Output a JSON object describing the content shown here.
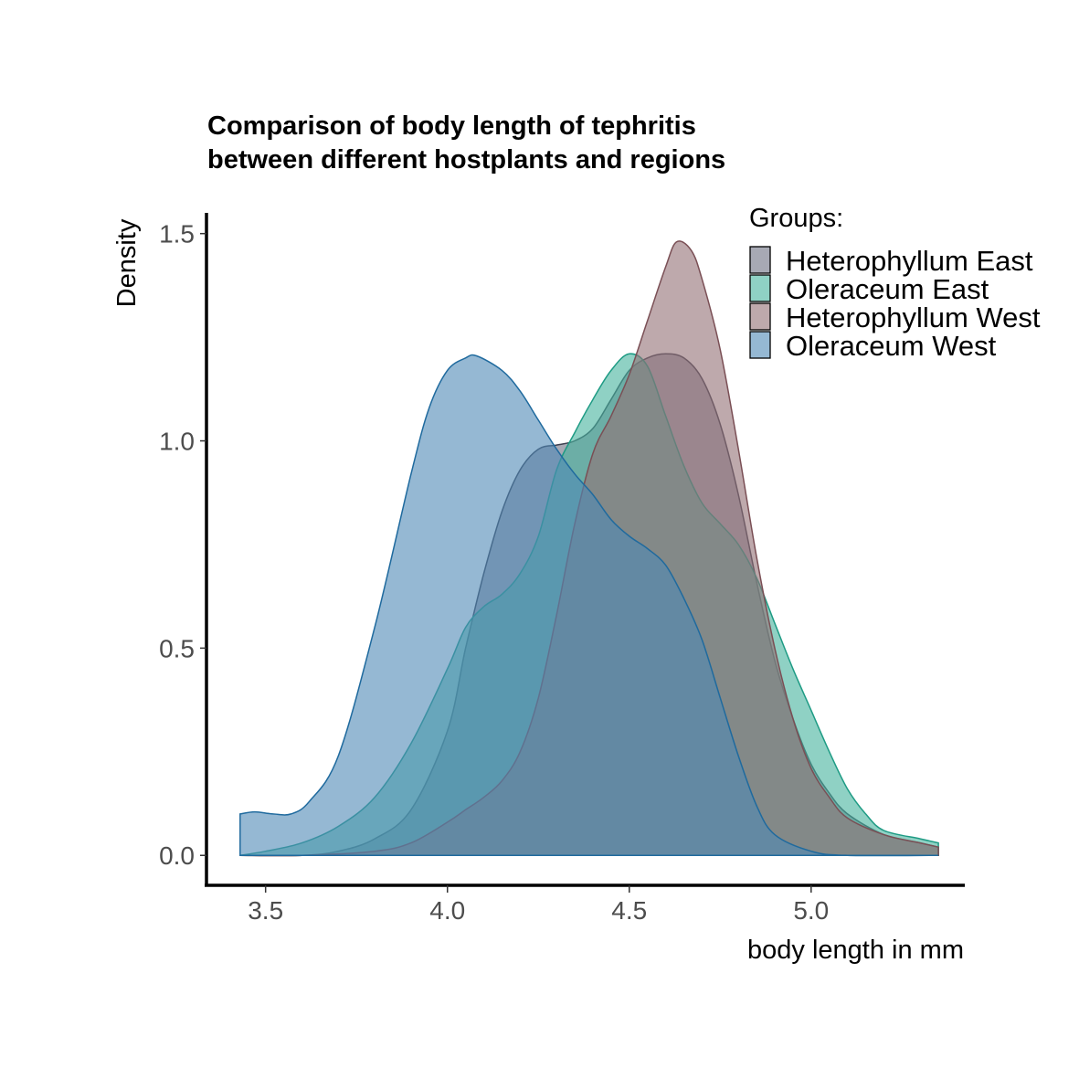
{
  "chart_data": {
    "type": "area",
    "title_lines": [
      "Comparison of body length of tephritis",
      "between different hostplants and regions"
    ],
    "xlabel": "body length in mm",
    "ylabel": "Density",
    "xlim": [
      3.34,
      5.42
    ],
    "ylim": [
      -0.07,
      1.55
    ],
    "x_ticks": [
      3.5,
      4.0,
      4.5,
      5.0
    ],
    "x_tick_labels": [
      "3.5",
      "4.0",
      "4.5",
      "5.0"
    ],
    "y_ticks": [
      0.0,
      0.5,
      1.0,
      1.5
    ],
    "y_tick_labels": [
      "0.0",
      "0.5",
      "1.0",
      "1.5"
    ],
    "grid": false,
    "legend": {
      "title": "Groups:",
      "placement": "top-right"
    },
    "series": [
      {
        "name": "Heterophyllum East",
        "fill": "#6c6f82",
        "stroke": "#3e4050",
        "opacity": 0.6,
        "points": [
          [
            3.43,
            0.0
          ],
          [
            3.6,
            0.0
          ],
          [
            3.7,
            0.01
          ],
          [
            3.8,
            0.04
          ],
          [
            3.9,
            0.11
          ],
          [
            4.0,
            0.3
          ],
          [
            4.05,
            0.5
          ],
          [
            4.1,
            0.68
          ],
          [
            4.15,
            0.83
          ],
          [
            4.2,
            0.93
          ],
          [
            4.25,
            0.98
          ],
          [
            4.3,
            0.99
          ],
          [
            4.35,
            1.0
          ],
          [
            4.4,
            1.03
          ],
          [
            4.45,
            1.1
          ],
          [
            4.5,
            1.17
          ],
          [
            4.55,
            1.2
          ],
          [
            4.6,
            1.21
          ],
          [
            4.65,
            1.2
          ],
          [
            4.7,
            1.15
          ],
          [
            4.75,
            1.04
          ],
          [
            4.8,
            0.87
          ],
          [
            4.85,
            0.66
          ],
          [
            4.9,
            0.47
          ],
          [
            4.95,
            0.33
          ],
          [
            5.0,
            0.22
          ],
          [
            5.05,
            0.15
          ],
          [
            5.1,
            0.1
          ],
          [
            5.2,
            0.05
          ],
          [
            5.3,
            0.03
          ],
          [
            5.35,
            0.02
          ]
        ]
      },
      {
        "name": "Oleraceum East",
        "fill": "#45b39d",
        "stroke": "#1e9b84",
        "opacity": 0.6,
        "points": [
          [
            3.43,
            0.0
          ],
          [
            3.5,
            0.01
          ],
          [
            3.6,
            0.03
          ],
          [
            3.7,
            0.07
          ],
          [
            3.8,
            0.14
          ],
          [
            3.9,
            0.27
          ],
          [
            4.0,
            0.45
          ],
          [
            4.05,
            0.55
          ],
          [
            4.1,
            0.6
          ],
          [
            4.15,
            0.63
          ],
          [
            4.2,
            0.68
          ],
          [
            4.25,
            0.77
          ],
          [
            4.3,
            0.93
          ],
          [
            4.35,
            1.02
          ],
          [
            4.4,
            1.1
          ],
          [
            4.45,
            1.17
          ],
          [
            4.5,
            1.21
          ],
          [
            4.55,
            1.18
          ],
          [
            4.6,
            1.06
          ],
          [
            4.65,
            0.94
          ],
          [
            4.7,
            0.85
          ],
          [
            4.75,
            0.8
          ],
          [
            4.8,
            0.75
          ],
          [
            4.85,
            0.67
          ],
          [
            4.9,
            0.56
          ],
          [
            4.95,
            0.45
          ],
          [
            5.0,
            0.35
          ],
          [
            5.05,
            0.25
          ],
          [
            5.1,
            0.16
          ],
          [
            5.15,
            0.1
          ],
          [
            5.2,
            0.06
          ],
          [
            5.3,
            0.04
          ],
          [
            5.35,
            0.03
          ]
        ]
      },
      {
        "name": "Heterophyllum West",
        "fill": "#926f74",
        "stroke": "#7a4f55",
        "opacity": 0.6,
        "points": [
          [
            3.43,
            0.0
          ],
          [
            3.6,
            0.0
          ],
          [
            3.8,
            0.01
          ],
          [
            3.9,
            0.03
          ],
          [
            4.0,
            0.08
          ],
          [
            4.05,
            0.11
          ],
          [
            4.1,
            0.14
          ],
          [
            4.15,
            0.18
          ],
          [
            4.2,
            0.25
          ],
          [
            4.25,
            0.38
          ],
          [
            4.3,
            0.58
          ],
          [
            4.35,
            0.8
          ],
          [
            4.4,
            0.97
          ],
          [
            4.45,
            1.06
          ],
          [
            4.5,
            1.16
          ],
          [
            4.55,
            1.29
          ],
          [
            4.6,
            1.42
          ],
          [
            4.63,
            1.48
          ],
          [
            4.67,
            1.46
          ],
          [
            4.7,
            1.39
          ],
          [
            4.75,
            1.22
          ],
          [
            4.8,
            0.98
          ],
          [
            4.85,
            0.72
          ],
          [
            4.9,
            0.5
          ],
          [
            4.95,
            0.33
          ],
          [
            5.0,
            0.21
          ],
          [
            5.05,
            0.14
          ],
          [
            5.1,
            0.09
          ],
          [
            5.2,
            0.05
          ],
          [
            5.3,
            0.03
          ],
          [
            5.35,
            0.02
          ]
        ]
      },
      {
        "name": "Oleraceum West",
        "fill": "#4f88b5",
        "stroke": "#1f6a9e",
        "opacity": 0.6,
        "points": [
          [
            3.43,
            0.1
          ],
          [
            3.47,
            0.105
          ],
          [
            3.52,
            0.1
          ],
          [
            3.57,
            0.1
          ],
          [
            3.62,
            0.13
          ],
          [
            3.7,
            0.24
          ],
          [
            3.8,
            0.55
          ],
          [
            3.9,
            0.92
          ],
          [
            3.95,
            1.08
          ],
          [
            4.0,
            1.17
          ],
          [
            4.05,
            1.2
          ],
          [
            4.08,
            1.205
          ],
          [
            4.15,
            1.17
          ],
          [
            4.2,
            1.12
          ],
          [
            4.25,
            1.05
          ],
          [
            4.3,
            0.98
          ],
          [
            4.35,
            0.92
          ],
          [
            4.4,
            0.87
          ],
          [
            4.45,
            0.81
          ],
          [
            4.5,
            0.77
          ],
          [
            4.55,
            0.74
          ],
          [
            4.6,
            0.7
          ],
          [
            4.65,
            0.62
          ],
          [
            4.7,
            0.52
          ],
          [
            4.75,
            0.38
          ],
          [
            4.8,
            0.24
          ],
          [
            4.85,
            0.12
          ],
          [
            4.9,
            0.05
          ],
          [
            5.0,
            0.01
          ],
          [
            5.1,
            0.0
          ],
          [
            5.35,
            0.0
          ]
        ]
      }
    ]
  }
}
